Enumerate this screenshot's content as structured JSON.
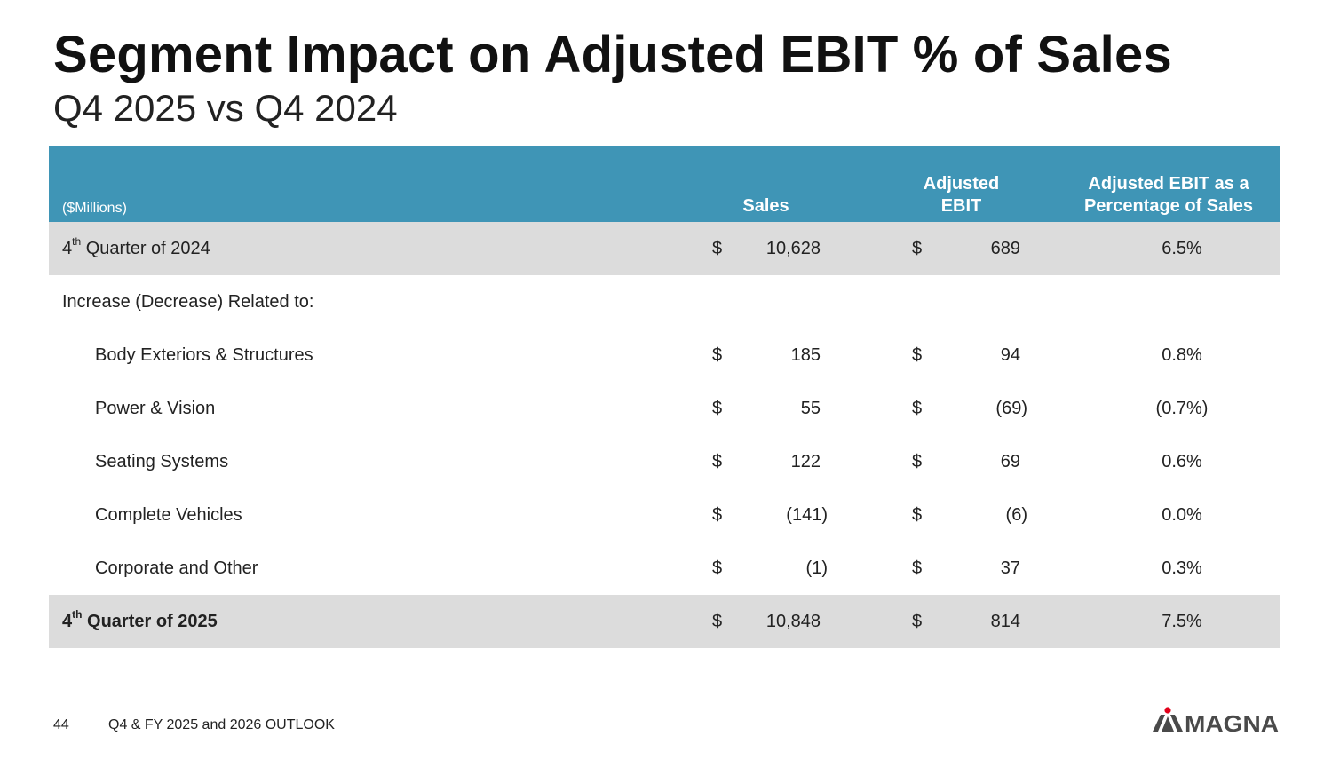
{
  "page": {
    "title": "Segment Impact on Adjusted EBIT % of Sales",
    "subtitle": "Q4 2025 vs Q4 2024"
  },
  "table": {
    "units": "($Millions)",
    "headers": {
      "sales": "Sales",
      "ebit_line1": "Adjusted",
      "ebit_line2": "EBIT",
      "pct_line1": "Adjusted EBIT as a",
      "pct_line2": "Percentage of Sales"
    },
    "rows": [
      {
        "label_pre": "4",
        "label_sup": "th",
        "label_post": " Quarter of 2024",
        "dollar1": "$",
        "sales": "10,628",
        "dollar2": "$",
        "ebit": "689",
        "pct": "6.5%"
      },
      {
        "label": "Increase (Decrease) Related to:"
      },
      {
        "label": "Body Exteriors & Structures",
        "dollar1": "$",
        "sales": "185",
        "dollar2": "$",
        "ebit": "94",
        "pct": "0.8%"
      },
      {
        "label": "Power & Vision",
        "dollar1": "$",
        "sales": "55",
        "dollar2": "$",
        "ebit": "(69)",
        "pct": "(0.7%)"
      },
      {
        "label": "Seating Systems",
        "dollar1": "$",
        "sales": "122",
        "dollar2": "$",
        "ebit": "69",
        "pct": "0.6%"
      },
      {
        "label": "Complete Vehicles",
        "dollar1": "$",
        "sales": "(141)",
        "dollar2": "$",
        "ebit": "(6)",
        "pct": "0.0%"
      },
      {
        "label": "Corporate and Other",
        "dollar1": "$",
        "sales": "(1)",
        "dollar2": "$",
        "ebit": "37",
        "pct": "0.3%"
      },
      {
        "label_pre": "4",
        "label_sup": "th",
        "label_post": " Quarter of 2025",
        "dollar1": "$",
        "sales": "10,848",
        "dollar2": "$",
        "ebit": "814",
        "pct": "7.5%"
      }
    ]
  },
  "footer": {
    "page_number": "44",
    "text": "Q4 & FY 2025 and 2026 OUTLOOK",
    "logo_text": "MAGNA"
  },
  "colors": {
    "header_bg": "#3f95b6",
    "row_shade": "#dcdcdc",
    "logo_red": "#e2001a",
    "logo_gray": "#4a4a4a"
  }
}
